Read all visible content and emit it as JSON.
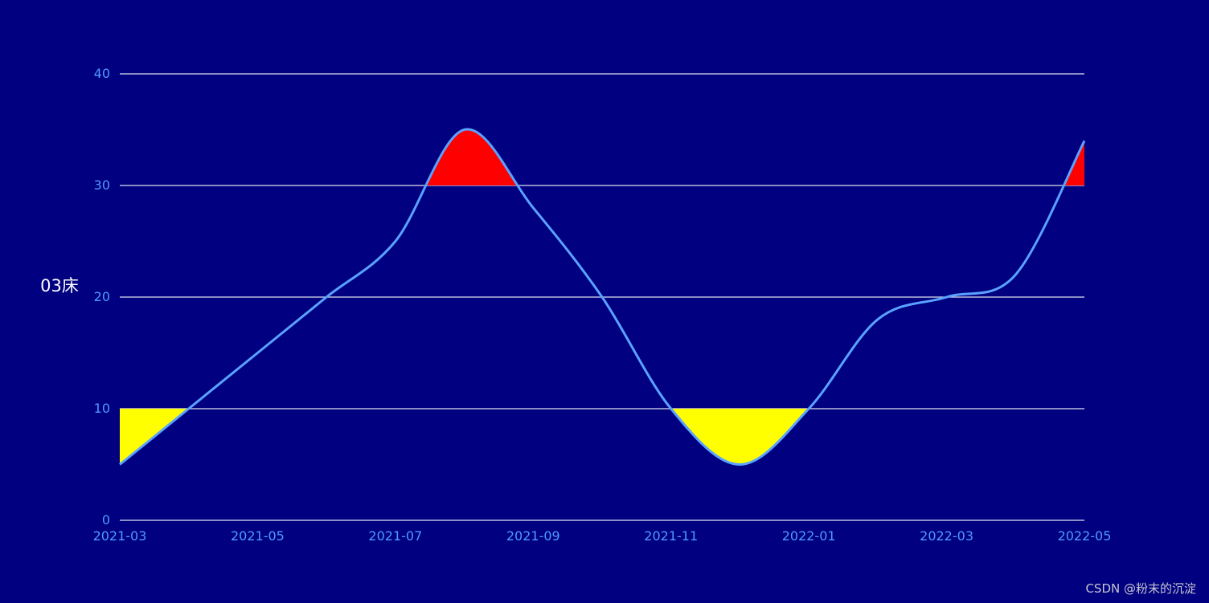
{
  "chart_data": {
    "type": "line",
    "ylabel": "03床",
    "x": [
      "2021-03",
      "2021-04",
      "2021-05",
      "2021-06",
      "2021-07",
      "2021-08",
      "2021-09",
      "2021-10",
      "2021-11",
      "2021-12",
      "2022-01",
      "2022-02",
      "2022-03",
      "2022-04",
      "2022-05"
    ],
    "x_ticks": [
      "2021-03",
      "2021-05",
      "2021-07",
      "2021-09",
      "2021-11",
      "2022-01",
      "2022-03",
      "2022-05"
    ],
    "values": [
      5,
      10,
      15,
      20,
      25,
      35,
      28,
      20,
      10,
      5,
      10,
      18,
      20,
      22,
      34
    ],
    "ylim": [
      0,
      40
    ],
    "y_ticks": [
      0,
      10,
      20,
      30,
      40
    ],
    "grid": true,
    "smooth": true,
    "upper_threshold": 30,
    "lower_threshold": 10,
    "colors": {
      "background": "#000080",
      "line": "#5aa2ff",
      "above_upper_fill": "#ff0000",
      "below_lower_fill": "#ffff00",
      "grid": "#dfe3f0",
      "tick_label": "#4f9bff",
      "ylabel": "#ffffff"
    }
  },
  "watermark": "CSDN @粉末的沉淀"
}
